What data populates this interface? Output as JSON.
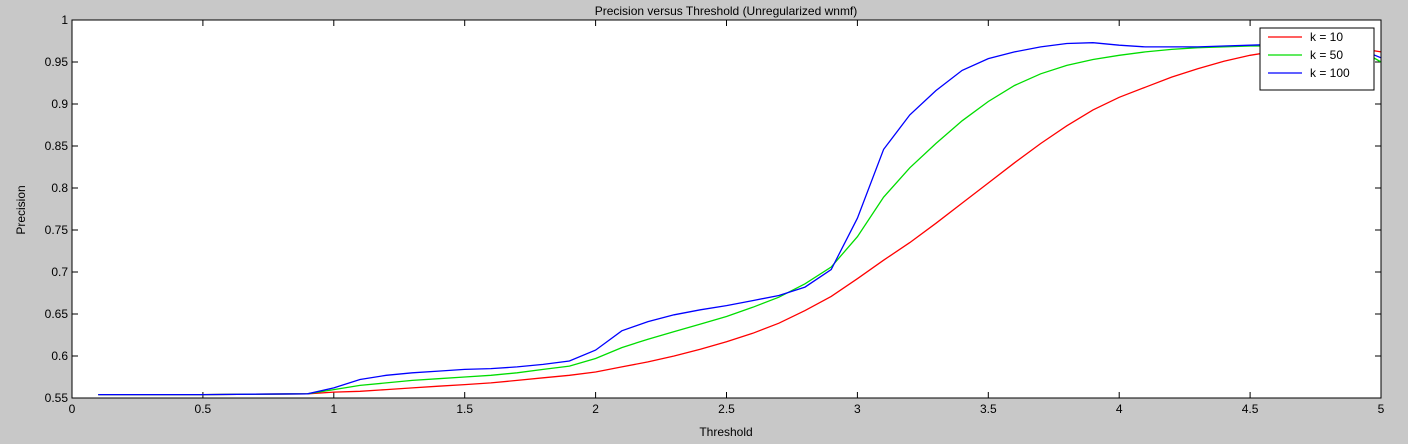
{
  "chart_data": {
    "type": "line",
    "title": "Precision versus Threshold (Unregularized wnmf)",
    "xlabel": "Threshold",
    "ylabel": "Precision",
    "xlim": [
      0,
      5
    ],
    "ylim": [
      0.55,
      1
    ],
    "xticks": [
      0,
      0.5,
      1,
      1.5,
      2,
      2.5,
      3,
      3.5,
      4,
      4.5,
      5
    ],
    "xtick_labels": [
      "0",
      "0.5",
      "1",
      "1.5",
      "2",
      "2.5",
      "3",
      "3.5",
      "4",
      "4.5",
      "5"
    ],
    "yticks": [
      0.55,
      0.6,
      0.65,
      0.7,
      0.75,
      0.8,
      0.85,
      0.9,
      0.95,
      1
    ],
    "ytick_labels": [
      "0.55",
      "0.6",
      "0.65",
      "0.7",
      "0.75",
      "0.8",
      "0.85",
      "0.9",
      "0.95",
      "1"
    ],
    "grid": false,
    "legend_position": "top-right",
    "series": [
      {
        "name": "k = 10",
        "color": "#ff0000",
        "x": [
          0.1,
          0.5,
          0.9,
          1.0,
          1.1,
          1.2,
          1.3,
          1.4,
          1.5,
          1.6,
          1.7,
          1.8,
          1.9,
          2.0,
          2.1,
          2.2,
          2.3,
          2.4,
          2.5,
          2.6,
          2.7,
          2.8,
          2.9,
          3.0,
          3.1,
          3.2,
          3.3,
          3.4,
          3.5,
          3.6,
          3.7,
          3.8,
          3.9,
          4.0,
          4.1,
          4.2,
          4.3,
          4.4,
          4.5,
          4.6,
          4.7,
          4.8,
          4.9,
          5.0
        ],
        "y": [
          0.554,
          0.554,
          0.555,
          0.557,
          0.558,
          0.56,
          0.562,
          0.564,
          0.566,
          0.568,
          0.571,
          0.574,
          0.577,
          0.581,
          0.587,
          0.593,
          0.6,
          0.608,
          0.617,
          0.627,
          0.639,
          0.654,
          0.671,
          0.692,
          0.714,
          0.735,
          0.758,
          0.782,
          0.806,
          0.83,
          0.853,
          0.874,
          0.893,
          0.908,
          0.92,
          0.932,
          0.942,
          0.951,
          0.958,
          0.963,
          0.966,
          0.967,
          0.967,
          0.962
        ]
      },
      {
        "name": "k = 50",
        "color": "#00dd00",
        "x": [
          0.1,
          0.5,
          0.9,
          1.0,
          1.1,
          1.2,
          1.3,
          1.4,
          1.5,
          1.6,
          1.7,
          1.8,
          1.9,
          2.0,
          2.1,
          2.2,
          2.3,
          2.4,
          2.5,
          2.6,
          2.7,
          2.8,
          2.9,
          3.0,
          3.1,
          3.2,
          3.3,
          3.4,
          3.5,
          3.6,
          3.7,
          3.8,
          3.9,
          4.0,
          4.1,
          4.2,
          4.3,
          4.4,
          4.5,
          4.6,
          4.7,
          4.8,
          4.9,
          5.0
        ],
        "y": [
          0.554,
          0.554,
          0.555,
          0.56,
          0.565,
          0.568,
          0.571,
          0.573,
          0.575,
          0.577,
          0.58,
          0.584,
          0.588,
          0.597,
          0.61,
          0.62,
          0.629,
          0.638,
          0.647,
          0.658,
          0.67,
          0.686,
          0.706,
          0.742,
          0.789,
          0.824,
          0.853,
          0.88,
          0.903,
          0.922,
          0.936,
          0.946,
          0.953,
          0.958,
          0.962,
          0.965,
          0.967,
          0.968,
          0.969,
          0.969,
          0.969,
          0.969,
          0.968,
          0.95
        ]
      },
      {
        "name": "k = 100",
        "color": "#0000ff",
        "x": [
          0.1,
          0.5,
          0.9,
          1.0,
          1.1,
          1.2,
          1.3,
          1.4,
          1.5,
          1.6,
          1.7,
          1.8,
          1.9,
          2.0,
          2.1,
          2.2,
          2.3,
          2.4,
          2.5,
          2.6,
          2.7,
          2.8,
          2.9,
          3.0,
          3.1,
          3.2,
          3.3,
          3.4,
          3.5,
          3.6,
          3.7,
          3.8,
          3.9,
          4.0,
          4.1,
          4.2,
          4.3,
          4.4,
          4.5,
          4.6,
          4.7,
          4.8,
          4.9,
          5.0
        ],
        "y": [
          0.554,
          0.554,
          0.555,
          0.562,
          0.572,
          0.577,
          0.58,
          0.582,
          0.584,
          0.585,
          0.587,
          0.59,
          0.594,
          0.607,
          0.63,
          0.641,
          0.649,
          0.655,
          0.66,
          0.666,
          0.672,
          0.682,
          0.703,
          0.764,
          0.846,
          0.887,
          0.916,
          0.94,
          0.954,
          0.962,
          0.968,
          0.972,
          0.973,
          0.97,
          0.968,
          0.968,
          0.968,
          0.969,
          0.97,
          0.971,
          0.971,
          0.971,
          0.968,
          0.955
        ]
      }
    ]
  }
}
